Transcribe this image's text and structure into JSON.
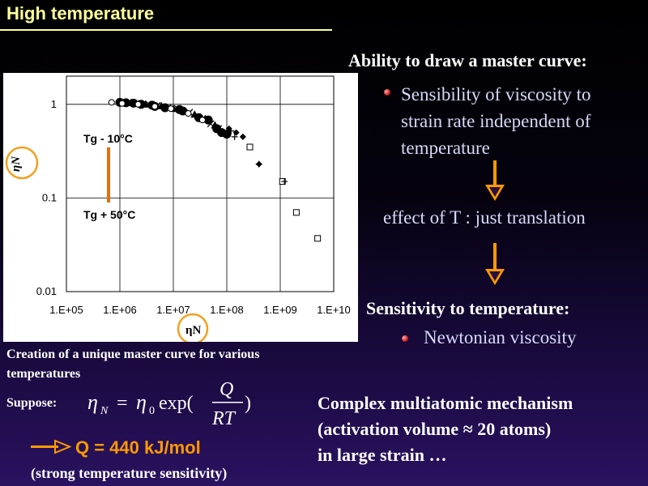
{
  "title": "High temperature",
  "right": {
    "heading1": "Ability to draw a master curve:",
    "bullet1": "Sensibility of viscosity to strain rate independent of temperature",
    "bullet1_lines": [
      "Sensibility of viscosity to",
      "strain rate independent of",
      "temperature"
    ],
    "effect": "effect of T : just translation",
    "heading2": "Sensitivity to temperature:",
    "bullet2": "Newtonian viscosity",
    "complex_lines": [
      "Complex multiatomic mechanism",
      "(activation volume ≈ 20 atoms)",
      "in large strain …"
    ]
  },
  "caption_lines": [
    "Creation of a unique master curve for various",
    "temperatures"
  ],
  "suppose": "Suppose:",
  "result": "Q = 440 kJ/mol",
  "strong_sensitivity": "(strong temperature sensitivity)",
  "colors": {
    "title": "#ffff99",
    "accent": "#ff9900",
    "background": "#000000"
  },
  "chart_data": {
    "type": "scatter",
    "x_scale": "log",
    "y_scale": "log",
    "x_ticks": [
      "1.E+05",
      "1.E+06",
      "1.E+07",
      "1.E+08",
      "1.E+09",
      "1.E+10"
    ],
    "y_ticks": [
      "1",
      "0.1",
      "0.01"
    ],
    "xlim": [
      100000,
      10000000000
    ],
    "ylim": [
      0.01,
      2
    ],
    "ylabel": "ηN",
    "xlabel": "ηN",
    "annotations": [
      "Tg - 10°C",
      "Tg + 50°C"
    ],
    "grid": true,
    "series": [
      {
        "marker": "filled-circle",
        "x": [
          1000000,
          1300000,
          1800000,
          2500000,
          4000000,
          4500000,
          7000000,
          13000000,
          15000000,
          30000000,
          45000000,
          65000000,
          80000000,
          100000000
        ],
        "y": [
          1.05,
          1.04,
          1.03,
          1.0,
          0.98,
          0.95,
          0.92,
          0.88,
          0.85,
          0.72,
          0.68,
          0.55,
          0.5,
          0.48
        ]
      },
      {
        "marker": "x",
        "x": [
          1200000,
          2000000,
          3500000,
          5000000,
          8000000,
          12000000,
          20000000,
          35000000,
          50000000,
          70000000
        ],
        "y": [
          1.03,
          1.02,
          1.0,
          0.97,
          0.93,
          0.9,
          0.82,
          0.7,
          0.62,
          0.55
        ]
      },
      {
        "marker": "triangle",
        "x": [
          1600000,
          3000000,
          6000000,
          10000000,
          25000000,
          40000000,
          60000000
        ],
        "y": [
          1.04,
          1.0,
          0.96,
          0.9,
          0.78,
          0.7,
          0.6
        ]
      },
      {
        "marker": "open-circle",
        "x": [
          700000,
          1100000,
          2200000,
          4500000,
          9000000,
          19000000,
          35000000
        ],
        "y": [
          1.05,
          1.02,
          1.0,
          0.95,
          0.9,
          0.8,
          0.68
        ]
      },
      {
        "marker": "diamond",
        "x": [
          110000000,
          150000000,
          200000000,
          400000000
        ],
        "y": [
          0.55,
          0.5,
          0.45,
          0.23
        ]
      },
      {
        "marker": "open-square",
        "x": [
          270000000,
          1100000000,
          2000000000,
          5000000000
        ],
        "y": [
          0.35,
          0.15,
          0.07,
          0.037
        ]
      },
      {
        "marker": "filled-diamond-small",
        "x": [
          120000000,
          140000000,
          400000000,
          1200000000
        ],
        "y": [
          0.52,
          0.45,
          0.23,
          0.15
        ]
      }
    ]
  }
}
